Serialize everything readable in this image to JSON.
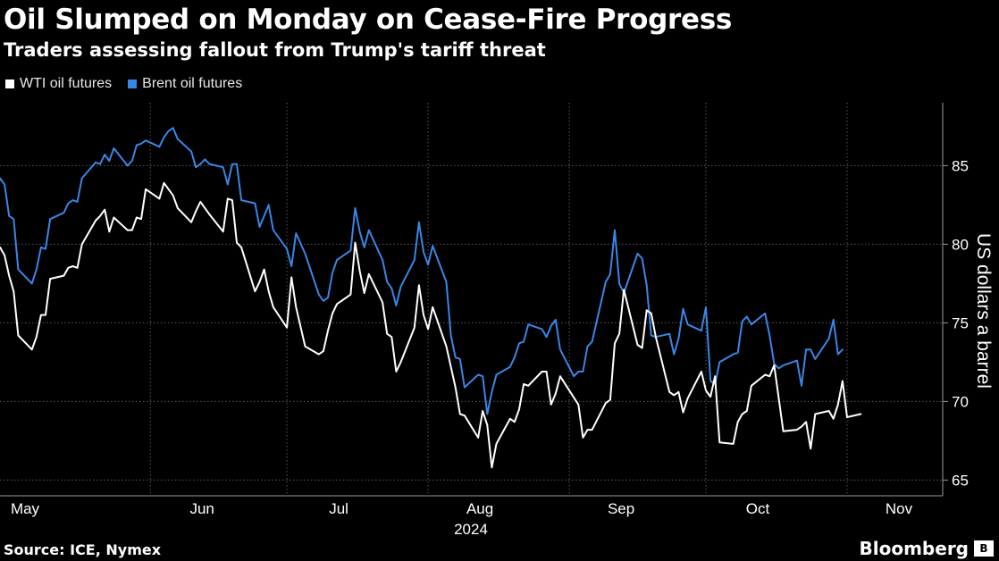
{
  "header": {
    "title": "Oil Slumped on Monday on Cease-Fire Progress",
    "subtitle": "Traders assessing fallout from Trump's tariff threat"
  },
  "footer": {
    "source": "Source: ICE, Nymex",
    "brand": "Bloomberg"
  },
  "colors": {
    "background": "#000000",
    "wti": "#ffffff",
    "brent": "#3a86e6",
    "grid": "#5a5a5a",
    "text": "#ffffff"
  },
  "chart_data": {
    "type": "line",
    "title": "Oil Slumped on Monday on Cease-Fire Progress",
    "subtitle": "Traders assessing fallout from Trump's tariff threat",
    "ylabel": "US dollars a barrel",
    "ylim": [
      64,
      89
    ],
    "yticks": [
      65,
      70,
      75,
      80,
      85
    ],
    "x_start": "2024-04-29",
    "x_end": "2024-11-22",
    "x_tick_labels": [
      {
        "label": "May",
        "date": "2024-05-01"
      },
      {
        "label": "Jun",
        "date": "2024-06-01"
      },
      {
        "label": "Jul",
        "date": "2024-07-01"
      },
      {
        "label": "Aug",
        "date": "2024-08-01"
      },
      {
        "label": "Sep",
        "date": "2024-09-01"
      },
      {
        "label": "Oct",
        "date": "2024-10-01"
      },
      {
        "label": "Nov",
        "date": "2024-11-01"
      }
    ],
    "gridlines_at": [
      "2024-06-01",
      "2024-07-01",
      "2024-08-01",
      "2024-09-01",
      "2024-10-01",
      "2024-11-01"
    ],
    "year_label": "2024",
    "grid": true,
    "legend": "top-left",
    "series": [
      {
        "name": "WTI oil futures",
        "color": "#ffffff",
        "points": [
          [
            "2024-04-29",
            79.8
          ],
          [
            "2024-04-30",
            79.3
          ],
          [
            "2024-05-01",
            78.0
          ],
          [
            "2024-05-02",
            77.0
          ],
          [
            "2024-05-03",
            74.2
          ],
          [
            "2024-05-06",
            73.3
          ],
          [
            "2024-05-07",
            74.1
          ],
          [
            "2024-05-08",
            75.5
          ],
          [
            "2024-05-09",
            75.5
          ],
          [
            "2024-05-10",
            77.8
          ],
          [
            "2024-05-13",
            78.0
          ],
          [
            "2024-05-14",
            78.5
          ],
          [
            "2024-05-15",
            78.6
          ],
          [
            "2024-05-16",
            78.5
          ],
          [
            "2024-05-17",
            80.0
          ],
          [
            "2024-05-20",
            81.5
          ],
          [
            "2024-05-21",
            81.8
          ],
          [
            "2024-05-22",
            82.2
          ],
          [
            "2024-05-23",
            80.8
          ],
          [
            "2024-05-24",
            81.7
          ],
          [
            "2024-05-27",
            80.9
          ],
          [
            "2024-05-28",
            80.9
          ],
          [
            "2024-05-29",
            81.7
          ],
          [
            "2024-05-30",
            81.6
          ],
          [
            "2024-05-31",
            83.5
          ],
          [
            "2024-06-03",
            82.9
          ],
          [
            "2024-06-04",
            83.9
          ],
          [
            "2024-06-05",
            83.5
          ],
          [
            "2024-06-06",
            83.1
          ],
          [
            "2024-06-07",
            82.3
          ],
          [
            "2024-06-10",
            81.4
          ],
          [
            "2024-06-11",
            82.1
          ],
          [
            "2024-06-12",
            82.7
          ],
          [
            "2024-06-13",
            82.3
          ],
          [
            "2024-06-14",
            81.9
          ],
          [
            "2024-06-17",
            80.8
          ],
          [
            "2024-06-18",
            82.9
          ],
          [
            "2024-06-19",
            82.8
          ],
          [
            "2024-06-20",
            80.1
          ],
          [
            "2024-06-21",
            79.8
          ],
          [
            "2024-06-24",
            77.0
          ],
          [
            "2024-06-25",
            77.6
          ],
          [
            "2024-06-26",
            78.4
          ],
          [
            "2024-06-27",
            77.0
          ],
          [
            "2024-06-28",
            76.0
          ],
          [
            "2024-07-01",
            74.7
          ],
          [
            "2024-07-02",
            77.9
          ],
          [
            "2024-07-03",
            76.0
          ],
          [
            "2024-07-05",
            73.5
          ],
          [
            "2024-07-08",
            73.0
          ],
          [
            "2024-07-09",
            73.2
          ],
          [
            "2024-07-10",
            74.5
          ],
          [
            "2024-07-11",
            75.6
          ],
          [
            "2024-07-12",
            76.2
          ],
          [
            "2024-07-15",
            76.8
          ],
          [
            "2024-07-16",
            80.1
          ],
          [
            "2024-07-17",
            78.3
          ],
          [
            "2024-07-18",
            76.9
          ],
          [
            "2024-07-19",
            78.1
          ],
          [
            "2024-07-22",
            76.3
          ],
          [
            "2024-07-23",
            74.3
          ],
          [
            "2024-07-24",
            74.1
          ],
          [
            "2024-07-25",
            71.9
          ],
          [
            "2024-07-26",
            72.5
          ],
          [
            "2024-07-29",
            74.7
          ],
          [
            "2024-07-30",
            77.4
          ],
          [
            "2024-07-31",
            75.5
          ],
          [
            "2024-08-01",
            74.6
          ],
          [
            "2024-08-02",
            76.0
          ],
          [
            "2024-08-05",
            73.5
          ],
          [
            "2024-08-06",
            72.2
          ],
          [
            "2024-08-07",
            70.9
          ],
          [
            "2024-08-08",
            69.2
          ],
          [
            "2024-08-09",
            69.1
          ],
          [
            "2024-08-12",
            67.7
          ],
          [
            "2024-08-13",
            69.4
          ],
          [
            "2024-08-14",
            68.5
          ],
          [
            "2024-08-15",
            65.8
          ],
          [
            "2024-08-16",
            67.3
          ],
          [
            "2024-08-19",
            68.9
          ],
          [
            "2024-08-20",
            68.7
          ],
          [
            "2024-08-21",
            69.5
          ],
          [
            "2024-08-22",
            71.1
          ],
          [
            "2024-08-23",
            71.0
          ],
          [
            "2024-08-26",
            71.9
          ],
          [
            "2024-08-27",
            71.9
          ],
          [
            "2024-08-28",
            69.8
          ],
          [
            "2024-08-29",
            70.5
          ],
          [
            "2024-08-30",
            71.6
          ],
          [
            "2024-09-03",
            69.8
          ],
          [
            "2024-09-04",
            67.7
          ],
          [
            "2024-09-05",
            68.2
          ],
          [
            "2024-09-06",
            68.2
          ],
          [
            "2024-09-09",
            69.9
          ],
          [
            "2024-09-10",
            70.1
          ],
          [
            "2024-09-11",
            73.7
          ],
          [
            "2024-09-12",
            74.3
          ],
          [
            "2024-09-13",
            77.1
          ],
          [
            "2024-09-16",
            73.6
          ],
          [
            "2024-09-17",
            73.4
          ],
          [
            "2024-09-18",
            75.8
          ],
          [
            "2024-09-19",
            75.6
          ],
          [
            "2024-09-20",
            74.1
          ],
          [
            "2024-09-23",
            70.6
          ],
          [
            "2024-09-24",
            70.4
          ],
          [
            "2024-09-25",
            70.6
          ],
          [
            "2024-09-26",
            69.3
          ],
          [
            "2024-09-27",
            70.2
          ],
          [
            "2024-09-30",
            71.9
          ],
          [
            "2024-10-01",
            70.7
          ],
          [
            "2024-10-02",
            70.3
          ],
          [
            "2024-10-03",
            71.6
          ],
          [
            "2024-10-04",
            67.4
          ],
          [
            "2024-10-07",
            67.3
          ],
          [
            "2024-10-08",
            68.7
          ],
          [
            "2024-10-09",
            69.2
          ],
          [
            "2024-10-10",
            69.4
          ],
          [
            "2024-10-11",
            71.0
          ],
          [
            "2024-10-14",
            71.7
          ],
          [
            "2024-10-15",
            71.6
          ],
          [
            "2024-10-16",
            72.3
          ],
          [
            "2024-10-17",
            70.2
          ],
          [
            "2024-10-18",
            68.1
          ],
          [
            "2024-10-21",
            68.2
          ],
          [
            "2024-10-22",
            68.4
          ],
          [
            "2024-10-23",
            68.7
          ],
          [
            "2024-10-24",
            67.0
          ],
          [
            "2024-10-25",
            69.2
          ],
          [
            "2024-10-28",
            69.4
          ],
          [
            "2024-10-29",
            68.9
          ],
          [
            "2024-10-30",
            69.8
          ],
          [
            "2024-10-31",
            71.3
          ],
          [
            "2024-11-01",
            69.0
          ],
          [
            "2024-11-04",
            69.2
          ]
        ]
      },
      {
        "name": "Brent oil futures",
        "color": "#3a86e6",
        "points": [
          [
            "2024-04-28",
            83.1
          ],
          [
            "2024-04-29",
            84.2
          ],
          [
            "2024-04-30",
            83.8
          ],
          [
            "2024-05-01",
            81.8
          ],
          [
            "2024-05-02",
            81.6
          ],
          [
            "2024-05-03",
            78.4
          ],
          [
            "2024-05-06",
            77.5
          ],
          [
            "2024-05-07",
            78.4
          ],
          [
            "2024-05-08",
            79.8
          ],
          [
            "2024-05-09",
            79.7
          ],
          [
            "2024-05-10",
            81.6
          ],
          [
            "2024-05-13",
            82.0
          ],
          [
            "2024-05-14",
            82.6
          ],
          [
            "2024-05-15",
            82.8
          ],
          [
            "2024-05-16",
            82.7
          ],
          [
            "2024-05-17",
            84.2
          ],
          [
            "2024-05-20",
            85.2
          ],
          [
            "2024-05-21",
            85.1
          ],
          [
            "2024-05-22",
            85.7
          ],
          [
            "2024-05-23",
            85.3
          ],
          [
            "2024-05-24",
            86.1
          ],
          [
            "2024-05-27",
            85.0
          ],
          [
            "2024-05-28",
            85.3
          ],
          [
            "2024-05-29",
            86.3
          ],
          [
            "2024-05-30",
            86.4
          ],
          [
            "2024-05-31",
            86.6
          ],
          [
            "2024-06-03",
            86.2
          ],
          [
            "2024-06-04",
            86.8
          ],
          [
            "2024-06-05",
            87.2
          ],
          [
            "2024-06-06",
            87.4
          ],
          [
            "2024-06-07",
            86.7
          ],
          [
            "2024-06-10",
            85.9
          ],
          [
            "2024-06-11",
            84.9
          ],
          [
            "2024-06-12",
            85.1
          ],
          [
            "2024-06-13",
            85.4
          ],
          [
            "2024-06-14",
            85.1
          ],
          [
            "2024-06-17",
            84.9
          ],
          [
            "2024-06-18",
            83.8
          ],
          [
            "2024-06-19",
            85.1
          ],
          [
            "2024-06-20",
            85.1
          ],
          [
            "2024-06-21",
            82.8
          ],
          [
            "2024-06-24",
            82.6
          ],
          [
            "2024-06-25",
            81.1
          ],
          [
            "2024-06-26",
            81.8
          ],
          [
            "2024-06-27",
            82.5
          ],
          [
            "2024-06-28",
            80.9
          ],
          [
            "2024-07-01",
            79.7
          ],
          [
            "2024-07-02",
            78.6
          ],
          [
            "2024-07-03",
            80.7
          ],
          [
            "2024-07-05",
            79.4
          ],
          [
            "2024-07-08",
            76.8
          ],
          [
            "2024-07-09",
            76.4
          ],
          [
            "2024-07-10",
            76.6
          ],
          [
            "2024-07-11",
            78.2
          ],
          [
            "2024-07-12",
            79.0
          ],
          [
            "2024-07-15",
            79.6
          ],
          [
            "2024-07-16",
            82.3
          ],
          [
            "2024-07-17",
            80.8
          ],
          [
            "2024-07-18",
            79.8
          ],
          [
            "2024-07-19",
            80.9
          ],
          [
            "2024-07-22",
            79.0
          ],
          [
            "2024-07-23",
            77.6
          ],
          [
            "2024-07-24",
            77.2
          ],
          [
            "2024-07-25",
            76.1
          ],
          [
            "2024-07-26",
            77.3
          ],
          [
            "2024-07-29",
            79.0
          ],
          [
            "2024-07-30",
            81.4
          ],
          [
            "2024-07-31",
            79.5
          ],
          [
            "2024-08-01",
            78.7
          ],
          [
            "2024-08-02",
            79.9
          ],
          [
            "2024-08-05",
            77.6
          ],
          [
            "2024-08-06",
            74.2
          ],
          [
            "2024-08-07",
            72.8
          ],
          [
            "2024-08-08",
            72.7
          ],
          [
            "2024-08-09",
            70.9
          ],
          [
            "2024-08-12",
            71.7
          ],
          [
            "2024-08-13",
            71.6
          ],
          [
            "2024-08-14",
            69.2
          ],
          [
            "2024-08-15",
            70.6
          ],
          [
            "2024-08-16",
            71.7
          ],
          [
            "2024-08-19",
            72.2
          ],
          [
            "2024-08-20",
            72.8
          ],
          [
            "2024-08-21",
            73.7
          ],
          [
            "2024-08-22",
            73.8
          ],
          [
            "2024-08-23",
            74.9
          ],
          [
            "2024-08-26",
            74.6
          ],
          [
            "2024-08-27",
            74.1
          ],
          [
            "2024-08-28",
            74.8
          ],
          [
            "2024-08-29",
            75.2
          ],
          [
            "2024-08-30",
            73.3
          ],
          [
            "2024-09-02",
            71.6
          ],
          [
            "2024-09-03",
            71.9
          ],
          [
            "2024-09-04",
            71.9
          ],
          [
            "2024-09-05",
            73.5
          ],
          [
            "2024-09-06",
            73.8
          ],
          [
            "2024-09-09",
            77.6
          ],
          [
            "2024-09-10",
            78.1
          ],
          [
            "2024-09-11",
            80.9
          ],
          [
            "2024-09-12",
            77.5
          ],
          [
            "2024-09-13",
            76.9
          ],
          [
            "2024-09-16",
            79.4
          ],
          [
            "2024-09-17",
            79.1
          ],
          [
            "2024-09-18",
            77.4
          ],
          [
            "2024-09-19",
            74.2
          ],
          [
            "2024-09-20",
            74.1
          ],
          [
            "2024-09-23",
            74.3
          ],
          [
            "2024-09-24",
            73.0
          ],
          [
            "2024-09-25",
            74.0
          ],
          [
            "2024-09-26",
            75.9
          ],
          [
            "2024-09-27",
            74.9
          ],
          [
            "2024-09-30",
            74.5
          ],
          [
            "2024-10-01",
            76.0
          ],
          [
            "2024-10-02",
            71.3
          ],
          [
            "2024-10-03",
            71.1
          ],
          [
            "2024-10-04",
            72.5
          ],
          [
            "2024-10-07",
            73.0
          ],
          [
            "2024-10-08",
            73.1
          ],
          [
            "2024-10-09",
            75.1
          ],
          [
            "2024-10-10",
            75.4
          ],
          [
            "2024-10-11",
            74.9
          ],
          [
            "2024-10-14",
            75.6
          ],
          [
            "2024-10-15",
            74.2
          ],
          [
            "2024-10-16",
            72.4
          ],
          [
            "2024-10-17",
            72.1
          ],
          [
            "2024-10-18",
            72.3
          ],
          [
            "2024-10-21",
            72.6
          ],
          [
            "2024-10-22",
            71.0
          ],
          [
            "2024-10-23",
            73.3
          ],
          [
            "2024-10-24",
            73.3
          ],
          [
            "2024-10-25",
            72.7
          ],
          [
            "2024-10-28",
            74.0
          ],
          [
            "2024-10-29",
            75.2
          ],
          [
            "2024-10-30",
            73.0
          ],
          [
            "2024-10-31",
            73.3
          ]
        ]
      }
    ]
  }
}
